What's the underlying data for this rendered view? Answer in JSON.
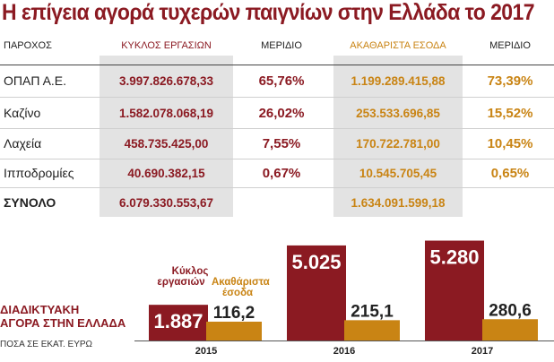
{
  "title": "Η επίγεια αγορά τυχερών παιγνίων στην Ελλάδα το 2017",
  "table": {
    "headers": {
      "provider": "ΠΑΡΟΧΟΣ",
      "turnover": "ΚΥΚΛΟΣ ΕΡΓΑΣΙΩΝ",
      "share1": "ΜΕΡΙΔΙΟ",
      "ggr": "ΑΚΑΘΑΡΙΣΤΑ ΕΣΟΔΑ",
      "share2": "ΜΕΡΙΔΙΟ"
    },
    "rows": [
      {
        "provider": "ΟΠΑΠ Α.Ε.",
        "turnover": "3.997.826.678,33",
        "share1": "65,76%",
        "ggr": "1.199.289.415,88",
        "share2": "73,39%"
      },
      {
        "provider": "Καζίνο",
        "turnover": "1.582.078.068,19",
        "share1": "26,02%",
        "ggr": "253.533.696,85",
        "share2": "15,52%"
      },
      {
        "provider": "Λαχεία",
        "turnover": "458.735.425,00",
        "share1": "7,55%",
        "ggr": "170.722.781,00",
        "share2": "10,45%"
      },
      {
        "provider": "Ιπποδρομίες",
        "turnover": "40.690.382,15",
        "share1": "0,67%",
        "ggr": "10.545.705,45",
        "share2": "0,65%"
      }
    ],
    "total": {
      "provider": "ΣΥΝΟΛΟ",
      "turnover": "6.079.330.553,67",
      "ggr": "1.634.091.599,18"
    }
  },
  "chart_caption": {
    "line1": "ΔΙΑΔΙΚΤΥΑΚΗ",
    "line2": "ΑΓΟΡΑ ΣΤΗΝ ΕΛΛΑΔΑ",
    "note": "ΠΟΣΑ ΣΕ ΕΚΑΤ. ΕΥΡΩ"
  },
  "chart_data": {
    "type": "bar",
    "categories": [
      "2015",
      "2016",
      "2017"
    ],
    "series": [
      {
        "name": "Κύκλος εργασιών",
        "values": [
          1887,
          5025,
          5280
        ],
        "labels": [
          "1.887",
          "5.025",
          "5.280"
        ],
        "color": "#8b1a22"
      },
      {
        "name": "Ακαθάριστα έσοδα",
        "values": [
          116.2,
          215.1,
          280.6
        ],
        "labels": [
          "116,2",
          "215,1",
          "280,6"
        ],
        "color": "#c98414"
      }
    ],
    "ylim": [
      0,
      5400
    ]
  },
  "colors": {
    "dark_red": "#8b1a22",
    "orange": "#c98414",
    "shade": "#e3e3e3"
  }
}
